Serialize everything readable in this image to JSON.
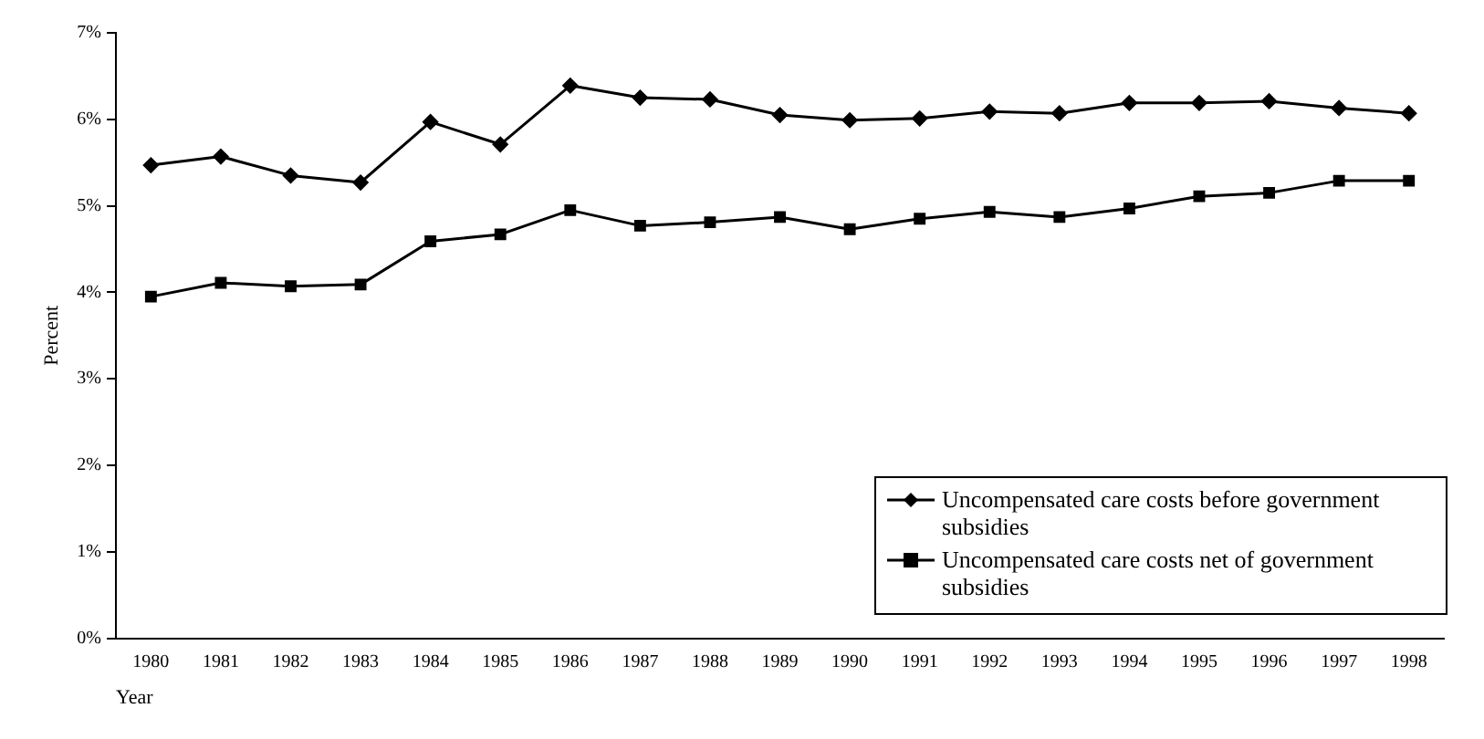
{
  "chart_data": {
    "type": "line",
    "xlabel": "Year",
    "ylabel": "Percent",
    "categories": [
      "1980",
      "1981",
      "1982",
      "1983",
      "1984",
      "1985",
      "1986",
      "1987",
      "1988",
      "1989",
      "1990",
      "1991",
      "1992",
      "1993",
      "1994",
      "1995",
      "1996",
      "1997",
      "1998"
    ],
    "series": [
      {
        "name": "Uncompensated care costs before government subsidies",
        "color": "#000000",
        "marker": "diamond",
        "values": [
          5.47,
          5.57,
          5.35,
          5.27,
          5.97,
          5.71,
          6.39,
          6.25,
          6.23,
          6.05,
          5.99,
          6.01,
          6.09,
          6.07,
          6.19,
          6.19,
          6.21,
          6.13,
          6.07
        ]
      },
      {
        "name": "Uncompensated care costs net of government subsidies",
        "color": "#000000",
        "marker": "square",
        "values": [
          3.95,
          4.11,
          4.07,
          4.09,
          4.59,
          4.67,
          4.95,
          4.77,
          4.81,
          4.87,
          4.73,
          4.85,
          4.93,
          4.87,
          4.97,
          5.11,
          5.15,
          5.29,
          5.29
        ]
      }
    ],
    "ylim": [
      0,
      7
    ],
    "yticks": [
      {
        "value": 0,
        "label": "0%"
      },
      {
        "value": 1,
        "label": "1%"
      },
      {
        "value": 2,
        "label": "2%"
      },
      {
        "value": 3,
        "label": "3%"
      },
      {
        "value": 4,
        "label": "4%"
      },
      {
        "value": 5,
        "label": "5%"
      },
      {
        "value": 6,
        "label": "6%"
      },
      {
        "value": 7,
        "label": "7%"
      }
    ],
    "grid": false,
    "legend": "bottom right",
    "line_style": "solid"
  }
}
